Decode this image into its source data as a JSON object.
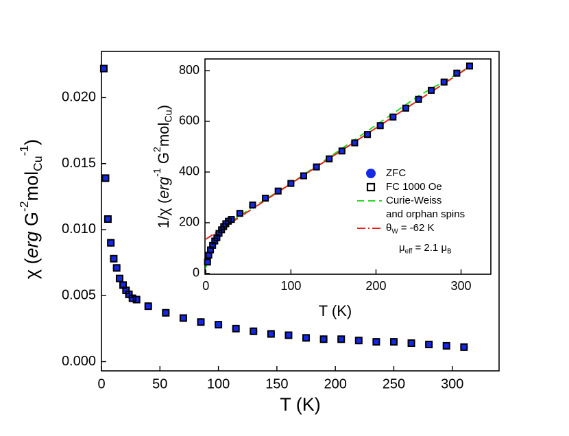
{
  "chart_data": [
    {
      "type": "scatter",
      "x_label": "T (K)",
      "y_label": [
        {
          "text": "χ ("
        },
        {
          "text": "erg",
          "style": "italic"
        },
        {
          "text": " G"
        },
        {
          "text": "-2",
          "style": "sup"
        },
        {
          "text": "mol"
        },
        {
          "text": "Cu",
          "style": "sub"
        },
        {
          "text": "-1",
          "style": "sup"
        },
        {
          "text": ")"
        }
      ],
      "xlim": [
        0,
        340
      ],
      "ylim": [
        -0.0007,
        0.0235
      ],
      "xticks": [
        0,
        50,
        100,
        150,
        200,
        250,
        300
      ],
      "yticks": [
        {
          "value": 0,
          "label": "0.000"
        },
        0.005,
        {
          "value": 0.01,
          "label": "0.010"
        },
        0.015,
        {
          "value": 0.02,
          "label": "0.020"
        }
      ],
      "series": [
        {
          "color": "#1428e6",
          "marker": "circle",
          "x": [
            2,
            3.5,
            5.5,
            8,
            10.5,
            13,
            15.5,
            18.5,
            21,
            23.5,
            26.5,
            30,
            40,
            55,
            70,
            85,
            100,
            115,
            130,
            145,
            160,
            175,
            190,
            205,
            220,
            235,
            250,
            265,
            280,
            295,
            310
          ],
          "values": [
            0.0222,
            0.0139,
            0.0108,
            0.009,
            0.0078,
            0.0071,
            0.0063,
            0.0058,
            0.0054,
            0.0051,
            0.0048,
            0.0047,
            0.0042,
            0.0037,
            0.0033,
            0.003,
            0.0028,
            0.0025,
            0.0023,
            0.0021,
            0.002,
            0.0018,
            0.0017,
            0.0017,
            0.0016,
            0.0015,
            0.0015,
            0.0014,
            0.0013,
            0.0012,
            0.0011
          ]
        },
        {
          "color": "#000000",
          "marker": "square",
          "x": [
            2,
            3.5,
            5.5,
            8,
            10.5,
            13,
            15.5,
            18.5,
            21,
            23.5,
            26.5,
            30,
            40,
            55,
            70,
            85,
            100,
            115,
            130,
            145,
            160,
            175,
            190,
            205,
            220,
            235,
            250,
            265,
            280,
            295,
            310
          ],
          "values": [
            0.0222,
            0.0139,
            0.0108,
            0.009,
            0.0078,
            0.0071,
            0.0063,
            0.0058,
            0.0054,
            0.0051,
            0.0048,
            0.0047,
            0.0042,
            0.0037,
            0.0033,
            0.003,
            0.0028,
            0.0025,
            0.0023,
            0.0021,
            0.002,
            0.0018,
            0.0017,
            0.0017,
            0.0016,
            0.0015,
            0.0015,
            0.0014,
            0.0013,
            0.0012,
            0.0011
          ]
        }
      ]
    },
    {
      "type": "scatter",
      "x_label": "T (K)",
      "y_label": [
        {
          "text": "1/χ ("
        },
        {
          "text": "erg",
          "style": "italic"
        },
        {
          "text": "-1",
          "style": "sup"
        },
        {
          "text": " G"
        },
        {
          "text": "2",
          "style": "sup"
        },
        {
          "text": "mol"
        },
        {
          "text": "Cu",
          "style": "sub"
        },
        {
          "text": ")"
        }
      ],
      "xlim": [
        -1,
        335
      ],
      "ylim": [
        -3,
        846
      ],
      "xticks": [
        0,
        100,
        200,
        300
      ],
      "yticks": [
        0,
        200,
        400,
        600,
        800
      ],
      "legend": "center-right",
      "annotation": [
        {
          "text": "μ"
        },
        {
          "text": "eff",
          "style": "sub"
        },
        {
          "text": " = 2.1 μ"
        },
        {
          "text": "B",
          "style": "sub"
        }
      ],
      "series": [
        {
          "name": "ZFC",
          "color": "#1428e6",
          "marker": "circle",
          "x": [
            2,
            3.5,
            5.5,
            8,
            10.5,
            13,
            15.5,
            18.5,
            21,
            23.5,
            26.5,
            30,
            40,
            55,
            70,
            85,
            100,
            115,
            130,
            145,
            160,
            175,
            190,
            205,
            220,
            235,
            250,
            265,
            280,
            295,
            310
          ],
          "values": [
            45,
            72,
            93,
            111,
            128,
            141,
            158,
            172,
            185,
            196,
            206,
            213,
            237,
            270,
            297,
            325,
            355,
            385,
            420,
            452,
            483,
            515,
            548,
            583,
            617,
            652,
            687,
            722,
            755,
            790,
            818
          ]
        },
        {
          "name": "FC 1000 Oe",
          "color": "#000000",
          "marker": "square",
          "x": [
            2,
            3.5,
            5.5,
            8,
            10.5,
            13,
            15.5,
            18.5,
            21,
            23.5,
            26.5,
            30,
            40,
            55,
            70,
            85,
            100,
            115,
            130,
            145,
            160,
            175,
            190,
            205,
            220,
            235,
            250,
            265,
            280,
            295,
            310
          ],
          "values": [
            45,
            72,
            93,
            111,
            128,
            141,
            158,
            172,
            185,
            196,
            206,
            213,
            237,
            270,
            297,
            325,
            355,
            385,
            420,
            452,
            483,
            515,
            548,
            583,
            617,
            652,
            687,
            722,
            755,
            790,
            818
          ]
        },
        {
          "name": [
            "Curie-Weiss",
            "and orphan spins"
          ],
          "color": "#22dd22",
          "line": "dashed",
          "x": [
            0,
            2,
            5,
            10,
            15,
            20,
            30,
            50,
            100,
            150,
            200,
            250,
            310
          ],
          "values": [
            22,
            50,
            85,
            125,
            152,
            175,
            205,
            250,
            355,
            470,
            585,
            700,
            815
          ]
        },
        {
          "name": [
            {
              "text": "θ"
            },
            {
              "text": "W",
              "style": "sub"
            },
            {
              "text": " = -62 K"
            }
          ],
          "color": "#e8201a",
          "line": "dashdot",
          "x": [
            0,
            310
          ],
          "values": [
            135,
            815
          ]
        }
      ]
    }
  ]
}
